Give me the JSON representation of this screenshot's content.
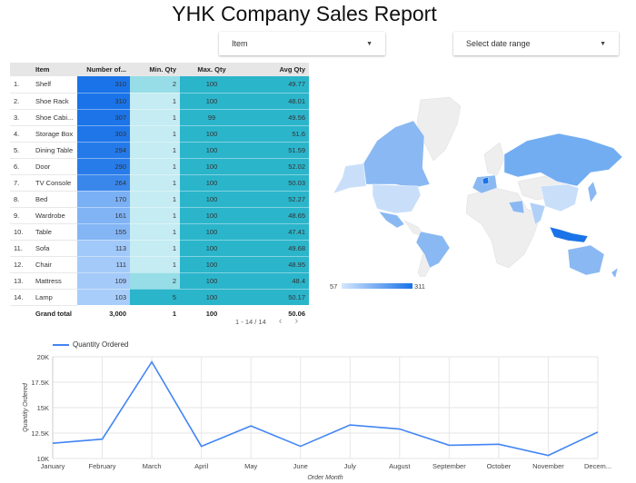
{
  "header": {
    "title": "YHK Company Sales Report"
  },
  "filters": {
    "item": {
      "label": "Item",
      "icon": "caret-down-icon"
    },
    "date_range": {
      "label": "Select date range",
      "icon": "caret-down-icon"
    }
  },
  "table": {
    "columns": [
      "",
      "Item",
      "Number of...",
      "Min. Qty",
      "Max. Qty",
      "Avg Qty"
    ],
    "rows": [
      {
        "idx": "1.",
        "item": "Shelf",
        "count": "310",
        "min": "2",
        "max": "100",
        "avg": "49.77"
      },
      {
        "idx": "2.",
        "item": "Shoe Rack",
        "count": "310",
        "min": "1",
        "max": "100",
        "avg": "48.01"
      },
      {
        "idx": "3.",
        "item": "Shoe Cabi...",
        "count": "307",
        "min": "1",
        "max": "99",
        "avg": "49.56"
      },
      {
        "idx": "4.",
        "item": "Storage Box",
        "count": "303",
        "min": "1",
        "max": "100",
        "avg": "51.6"
      },
      {
        "idx": "5.",
        "item": "Dining Table",
        "count": "294",
        "min": "1",
        "max": "100",
        "avg": "51.59"
      },
      {
        "idx": "6.",
        "item": "Door",
        "count": "290",
        "min": "1",
        "max": "100",
        "avg": "52.02"
      },
      {
        "idx": "7.",
        "item": "TV Console",
        "count": "264",
        "min": "1",
        "max": "100",
        "avg": "50.03"
      },
      {
        "idx": "8.",
        "item": "Bed",
        "count": "170",
        "min": "1",
        "max": "100",
        "avg": "52.27"
      },
      {
        "idx": "9.",
        "item": "Wardrobe",
        "count": "161",
        "min": "1",
        "max": "100",
        "avg": "48.65"
      },
      {
        "idx": "10.",
        "item": "Table",
        "count": "155",
        "min": "1",
        "max": "100",
        "avg": "47.41"
      },
      {
        "idx": "11.",
        "item": "Sofa",
        "count": "113",
        "min": "1",
        "max": "100",
        "avg": "49.68"
      },
      {
        "idx": "12.",
        "item": "Chair",
        "count": "111",
        "min": "1",
        "max": "100",
        "avg": "48.95"
      },
      {
        "idx": "13.",
        "item": "Mattress",
        "count": "109",
        "min": "2",
        "max": "100",
        "avg": "48.4"
      },
      {
        "idx": "14.",
        "item": "Lamp",
        "count": "103",
        "min": "5",
        "max": "100",
        "avg": "50.17"
      }
    ],
    "total": {
      "label": "Grand total",
      "count": "3,000",
      "min": "1",
      "max": "100",
      "avg": "50.06"
    },
    "pagination": {
      "range": "1 - 14 / 14",
      "prev_icon": "chevron-left-icon",
      "next_icon": "chevron-right-icon"
    },
    "colors": {
      "count_high": "#1a73e8",
      "count_low": "#a8cdfa",
      "min_low": "#c4ecf2",
      "min_mid": "#96dde7",
      "min_high": "#2bb5cb",
      "max": "#2bb5cb",
      "avg": "#2bb5cb"
    }
  },
  "map": {
    "legend_min": "57",
    "legend_max": "311",
    "color_low": "#d3e6fc",
    "color_high": "#1a73e8",
    "no_data_color": "#eeeeee"
  },
  "chart_data": {
    "type": "line",
    "title": "",
    "legend": [
      "Quantity Ordered"
    ],
    "xlabel": "Order Month",
    "ylabel": "Quantity Ordered",
    "categories": [
      "January",
      "February",
      "March",
      "April",
      "May",
      "June",
      "July",
      "August",
      "September",
      "October",
      "November",
      "Decem..."
    ],
    "series": [
      {
        "name": "Quantity Ordered",
        "color": "#4285f4",
        "values": [
          11500,
          11900,
          19500,
          11200,
          13200,
          11200,
          13300,
          12900,
          11300,
          11400,
          10300,
          12600
        ]
      }
    ],
    "ylim": [
      10000,
      20000
    ],
    "yticks": [
      "10K",
      "12.5K",
      "15K",
      "17.5K",
      "20K"
    ],
    "grid": true,
    "legend_position": "top-left"
  }
}
